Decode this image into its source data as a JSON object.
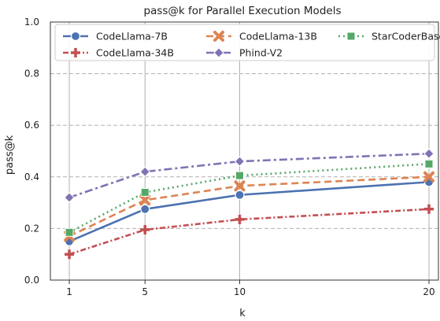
{
  "chart_data": {
    "type": "line",
    "title": "pass@k for Parallel Execution Models",
    "xlabel": "k",
    "ylabel": "pass@k",
    "x": [
      1,
      5,
      10,
      20
    ],
    "x_tick_labels": [
      "1",
      "5",
      "10",
      "20"
    ],
    "xlim": [
      0,
      20.5
    ],
    "ylim": [
      0.0,
      1.0
    ],
    "y_ticks": [
      0.0,
      0.2,
      0.4,
      0.6,
      0.8,
      1.0
    ],
    "y_tick_labels": [
      "0.0",
      "0.2",
      "0.4",
      "0.6",
      "0.8",
      "1.0"
    ],
    "grid": true,
    "legend_position": "top",
    "series": [
      {
        "name": "CodeLlama-7B",
        "values": [
          0.15,
          0.275,
          0.33,
          0.38
        ],
        "color": "#4c72b0",
        "dash": "solid",
        "marker": "circle"
      },
      {
        "name": "CodeLlama-13B",
        "values": [
          0.17,
          0.31,
          0.365,
          0.4
        ],
        "color": "#dd8452",
        "dash": "dashed",
        "marker": "x"
      },
      {
        "name": "StarCoderBase",
        "values": [
          0.185,
          0.34,
          0.405,
          0.45
        ],
        "color": "#55a868",
        "dash": "dotted",
        "marker": "square"
      },
      {
        "name": "CodeLlama-34B",
        "values": [
          0.1,
          0.195,
          0.235,
          0.275
        ],
        "color": "#c44e52",
        "dash": "dashdot",
        "marker": "plus"
      },
      {
        "name": "Phind-V2",
        "values": [
          0.32,
          0.42,
          0.46,
          0.49
        ],
        "color": "#8172b3",
        "dash": "dashdot2",
        "marker": "diamond"
      }
    ]
  }
}
